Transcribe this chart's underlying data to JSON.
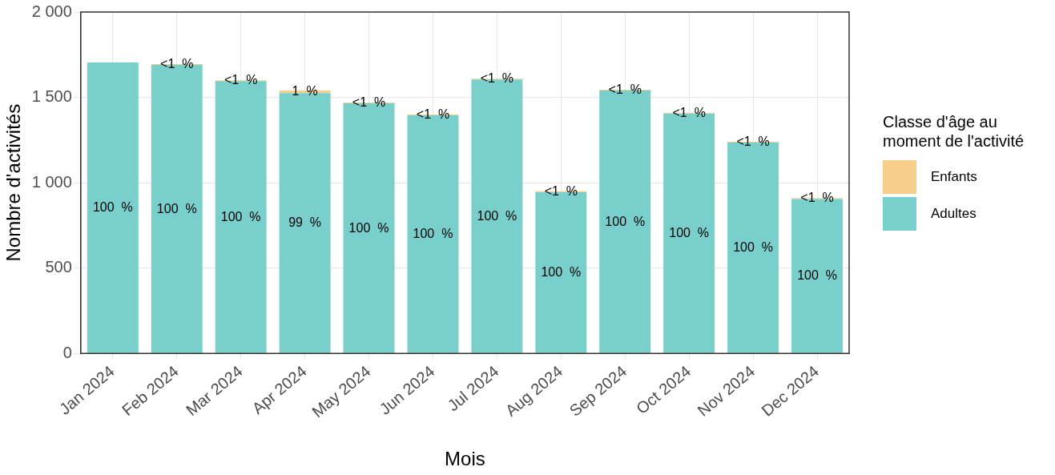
{
  "chart_data": {
    "type": "bar",
    "stacked": true,
    "xlabel": "Mois",
    "ylabel": "Nombre d'activités",
    "legend_title": "Classe d'âge au\nmoment de l'activité",
    "legend": "right",
    "grid": true,
    "categories": [
      "Jan 2024",
      "Feb 2024",
      "Mar 2024",
      "Apr 2024",
      "May 2024",
      "Jun 2024",
      "Jul 2024",
      "Aug 2024",
      "Sep 2024",
      "Oct 2024",
      "Nov 2024",
      "Dec 2024"
    ],
    "ylim": [
      0,
      2000
    ],
    "yticks": [
      0,
      500,
      {
        "value": 1000,
        "label": "1 000"
      },
      {
        "value": 1500,
        "label": "1 500"
      },
      {
        "value": 2000,
        "label": "2 000"
      }
    ],
    "series": [
      {
        "name": "Adultes",
        "color": "#79cfcc",
        "values": [
          1705,
          1690,
          1595,
          1525,
          1465,
          1395,
          1605,
          945,
          1540,
          1405,
          1235,
          905
        ]
      },
      {
        "name": "Enfants",
        "color": "#f8cf8a",
        "values": [
          null,
          5,
          5,
          15,
          5,
          5,
          5,
          5,
          5,
          5,
          5,
          5
        ]
      }
    ],
    "annotations": [
      {
        "text": "100  %",
        "x": "Jan 2024",
        "y": 852.5
      },
      {
        "text": "100  %",
        "x": "Feb 2024",
        "y": 845
      },
      {
        "text": "100  %",
        "x": "Mar 2024",
        "y": 797.5
      },
      {
        "text": "99  %",
        "x": "Apr 2024",
        "y": 762.5
      },
      {
        "text": "100  %",
        "x": "May 2024",
        "y": 732.5
      },
      {
        "text": "100  %",
        "x": "Jun 2024",
        "y": 697.5
      },
      {
        "text": "100  %",
        "x": "Jul 2024",
        "y": 802.5
      },
      {
        "text": "100  %",
        "x": "Aug 2024",
        "y": 472.5
      },
      {
        "text": "100  %",
        "x": "Sep 2024",
        "y": 770
      },
      {
        "text": "100  %",
        "x": "Oct 2024",
        "y": 702.5
      },
      {
        "text": "100  %",
        "x": "Nov 2024",
        "y": 617.5
      },
      {
        "text": "100  %",
        "x": "Dec 2024",
        "y": 452.5
      },
      {
        "text": "<1  %",
        "x": "Feb 2024",
        "y": 1692.5
      },
      {
        "text": "<1  %",
        "x": "Mar 2024",
        "y": 1597.5
      },
      {
        "text": "1  %",
        "x": "Apr 2024",
        "y": 1532.5
      },
      {
        "text": "<1  %",
        "x": "May 2024",
        "y": 1467.5
      },
      {
        "text": "<1  %",
        "x": "Jun 2024",
        "y": 1397.5
      },
      {
        "text": "<1  %",
        "x": "Jul 2024",
        "y": 1607.5
      },
      {
        "text": "<1  %",
        "x": "Aug 2024",
        "y": 947.5
      },
      {
        "text": "<1  %",
        "x": "Sep 2024",
        "y": 1542.5
      },
      {
        "text": "<1  %",
        "x": "Oct 2024",
        "y": 1407.5
      },
      {
        "text": "<1  %",
        "x": "Nov 2024",
        "y": 1237.5
      },
      {
        "text": "<1  %",
        "x": "Dec 2024",
        "y": 907.5
      }
    ]
  }
}
